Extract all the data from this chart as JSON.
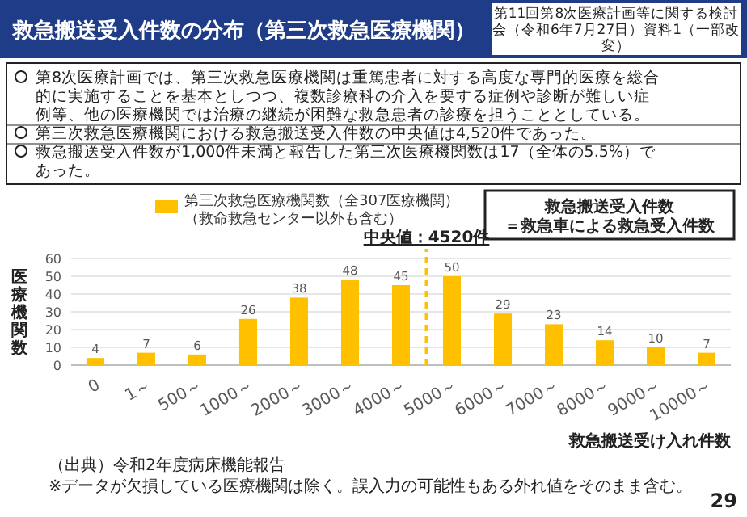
{
  "chart_data": {
    "type": "bar",
    "title": "救急搬送受入件数の分布（第三次救急医療機関）",
    "categories": [
      "0",
      "1～",
      "500～",
      "1000～",
      "2000～",
      "3000～",
      "4000～",
      "5000～",
      "6000～",
      "7000～",
      "8000～",
      "9000～",
      "10000～"
    ],
    "series": [
      {
        "name": "第三次救急医療機関数（全307医療機関）（救命救急センター以外も含む）",
        "color": "#ffc000",
        "values": [
          4,
          7,
          6,
          26,
          38,
          48,
          45,
          50,
          29,
          23,
          14,
          10,
          7
        ]
      }
    ],
    "ylim": [
      0,
      60
    ],
    "yticks": [
      0,
      10,
      20,
      30,
      40,
      50,
      60
    ],
    "grid": "y",
    "legend": "top",
    "data_labels": true,
    "ylabel": "医療機関数",
    "xlabel": "救急搬送受け入れ件数",
    "ref_lines": [
      {
        "axis": "x",
        "value": "4000～",
        "label": "中央値：4520件",
        "color": "#ffc000",
        "line_style": "dashed"
      }
    ],
    "annotations": [
      "第11回第8次医療計画等に関する検討会（令和6年7月27日）資料1（一部改変）",
      "第8次医療計画では、第三次救急医療機関は重篤患者に対する高度な専門的医療を総合的に実施することを基本としつつ、複数診療科の介入を要する症例や診断が難しい症例等、他の医療機関では治療の継続が困難な救急患者の診療を担うこととしている。",
      "第三次救急医療機関における救急搬送受入件数の中央値は4,520件であった。",
      "救急搬送受入件数が1,000件未満と報告した第三次医療機関数は17（全体の5.5%）であった。",
      "救急搬送受入件数＝救急車による救急受入件数",
      "（出典）令和2年度病床機能報告",
      "※データが欠損している医療機関は除く。誤入力の可能性もある外れ値をそのまま含む。",
      "29"
    ]
  }
}
